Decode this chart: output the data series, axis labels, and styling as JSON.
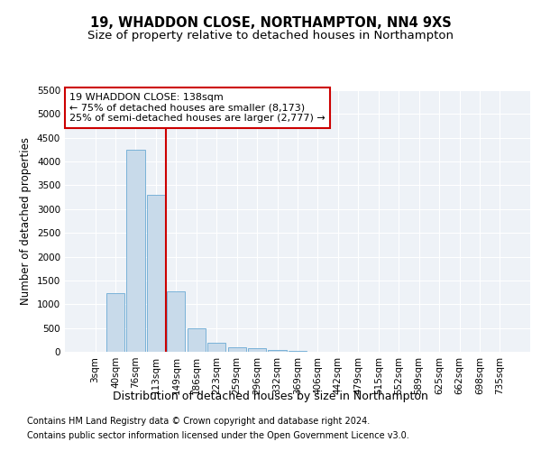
{
  "title1": "19, WHADDON CLOSE, NORTHAMPTON, NN4 9XS",
  "title2": "Size of property relative to detached houses in Northampton",
  "xlabel": "Distribution of detached houses by size in Northampton",
  "ylabel": "Number of detached properties",
  "categories": [
    "3sqm",
    "40sqm",
    "76sqm",
    "113sqm",
    "149sqm",
    "186sqm",
    "223sqm",
    "259sqm",
    "296sqm",
    "332sqm",
    "369sqm",
    "406sqm",
    "442sqm",
    "479sqm",
    "515sqm",
    "552sqm",
    "589sqm",
    "625sqm",
    "662sqm",
    "698sqm",
    "735sqm"
  ],
  "values": [
    0,
    1230,
    4250,
    3300,
    1280,
    490,
    190,
    95,
    70,
    45,
    20,
    8,
    0,
    0,
    0,
    0,
    0,
    0,
    0,
    0,
    0
  ],
  "bar_color": "#c8daea",
  "bar_edge_color": "#6aaad4",
  "vline_color": "#cc0000",
  "vline_x_index": 3.5,
  "ylim": [
    0,
    5500
  ],
  "yticks": [
    0,
    500,
    1000,
    1500,
    2000,
    2500,
    3000,
    3500,
    4000,
    4500,
    5000,
    5500
  ],
  "annotation_line1": "19 WHADDON CLOSE: 138sqm",
  "annotation_line2": "← 75% of detached houses are smaller (8,173)",
  "annotation_line3": "25% of semi-detached houses are larger (2,777) →",
  "annotation_box_color": "#cc0000",
  "footer1": "Contains HM Land Registry data © Crown copyright and database right 2024.",
  "footer2": "Contains public sector information licensed under the Open Government Licence v3.0.",
  "bg_color": "#eef2f7",
  "grid_color": "#ffffff",
  "title1_fontsize": 10.5,
  "title2_fontsize": 9.5,
  "xlabel_fontsize": 9,
  "ylabel_fontsize": 8.5,
  "tick_fontsize": 7.5,
  "annot_fontsize": 8,
  "footer_fontsize": 7
}
